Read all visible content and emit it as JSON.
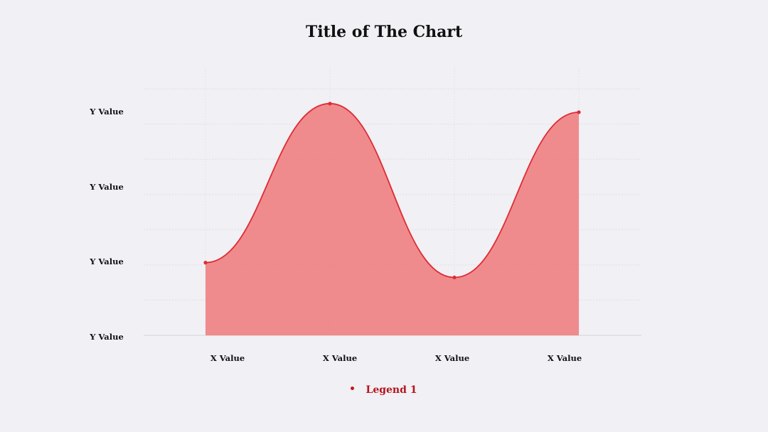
{
  "chart_data": {
    "type": "area",
    "title": "Title of The Chart",
    "x_tick_labels": [
      "X Value",
      "X Value",
      "X Value",
      "X Value"
    ],
    "y_tick_labels": [
      "Y Value",
      "Y Value",
      "Y Value",
      "Y Value"
    ],
    "x": [
      1,
      2,
      3,
      4
    ],
    "series": [
      {
        "name": "Legend 1",
        "values": [
          2.95,
          9.4,
          2.35,
          9.05
        ],
        "line_color": "#de2c34",
        "fill_color": "#ee8587"
      }
    ],
    "ylim": [
      0,
      10
    ],
    "grid": true,
    "legend_position": "bottom",
    "smooth": true
  }
}
